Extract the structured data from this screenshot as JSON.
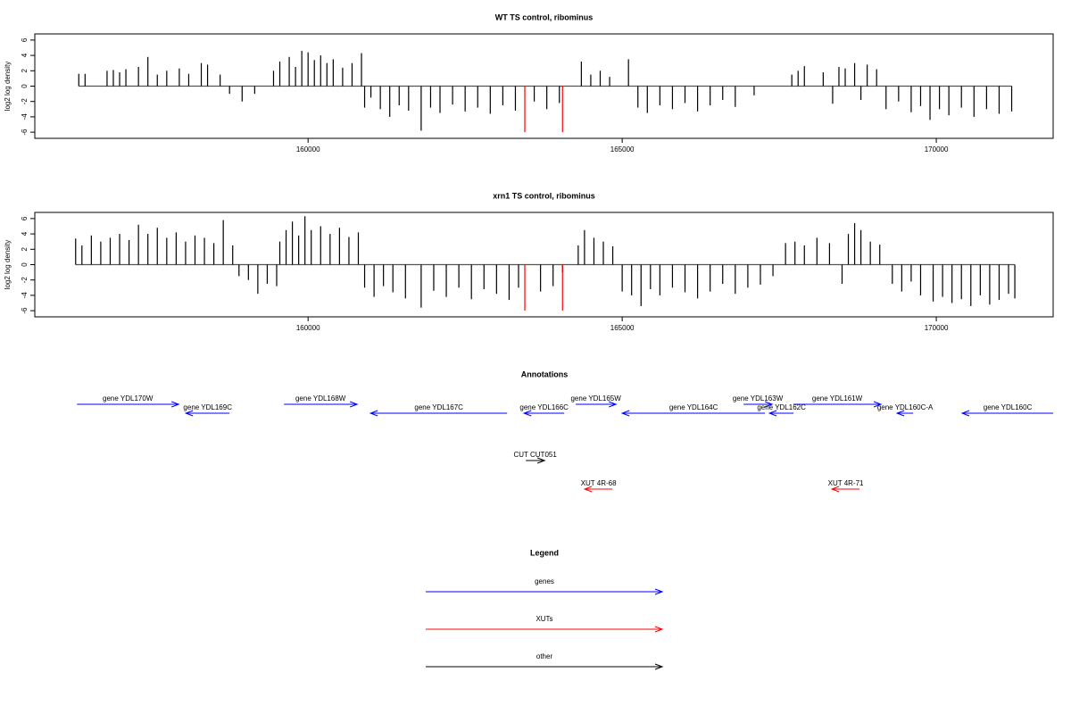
{
  "chart_data": [
    {
      "type": "bar",
      "title": "WT TS control, ribominus",
      "ylabel": "log2 log density",
      "xlim": [
        155650,
        171860
      ],
      "ylim": [
        -6.8,
        6.8
      ],
      "xticks": [
        160000,
        165000,
        170000
      ],
      "yticks": [
        -6,
        -4,
        -2,
        0,
        2,
        4,
        6
      ],
      "series": [
        {
          "color": "#000000",
          "x": [
            156350,
            156450,
            156800,
            156900,
            157000,
            157100,
            157300,
            157450,
            157600,
            157750,
            157950,
            158100,
            158300,
            158400,
            158600,
            158750,
            158950,
            159150,
            159450,
            159550,
            159700,
            159800,
            159900,
            160000,
            160100,
            160200,
            160300,
            160400,
            160550,
            160700,
            160850,
            160900,
            161000,
            161150,
            161300,
            161450,
            161600,
            161800,
            161950,
            162100,
            162300,
            162500,
            162700,
            162900,
            163100,
            163300,
            163600,
            163800,
            164000,
            164350,
            164500,
            164650,
            164800,
            165100,
            165250,
            165400,
            165600,
            165800,
            166000,
            166200,
            166400,
            166600,
            166800,
            167100,
            167700,
            167800,
            167900,
            168200,
            168350,
            168450,
            168550,
            168700,
            168800,
            168900,
            169050,
            169200,
            169400,
            169600,
            169750,
            169900,
            170050,
            170200,
            170400,
            170600,
            170800,
            171000,
            171200
          ],
          "values": [
            1.6,
            1.6,
            2.0,
            2.1,
            1.8,
            2.2,
            2.5,
            3.8,
            1.5,
            2.0,
            2.3,
            1.6,
            3.0,
            2.8,
            1.5,
            -1.0,
            -2.0,
            -1.0,
            2.0,
            3.2,
            3.8,
            2.5,
            4.6,
            4.4,
            3.4,
            4.0,
            3.0,
            3.5,
            2.4,
            3.0,
            4.3,
            -2.8,
            -1.5,
            -3.0,
            -4.0,
            -2.5,
            -3.2,
            -5.8,
            -2.8,
            -3.5,
            -2.4,
            -3.3,
            -2.8,
            -3.6,
            -2.5,
            -3.2,
            -2.0,
            -3.0,
            -2.2,
            3.2,
            1.5,
            2.0,
            1.2,
            3.5,
            -2.8,
            -3.5,
            -2.5,
            -3.0,
            -2.2,
            -3.3,
            -2.5,
            -1.8,
            -2.7,
            -1.2,
            1.5,
            2.0,
            2.6,
            1.8,
            -2.3,
            2.5,
            2.3,
            3.0,
            -1.8,
            2.8,
            2.2,
            -3.0,
            -2.0,
            -3.4,
            -2.6,
            -4.4,
            -3.0,
            -3.8,
            -2.8,
            -4.0,
            -3.0,
            -3.6,
            -3.3
          ]
        },
        {
          "color": "#ff0000",
          "x": [
            163450,
            164050
          ],
          "values": [
            -6,
            -6
          ]
        }
      ]
    },
    {
      "type": "bar",
      "title": "xrn1 TS control, ribominus",
      "ylabel": "log2 log density",
      "xlim": [
        155650,
        171860
      ],
      "ylim": [
        -6.8,
        6.8
      ],
      "xticks": [
        160000,
        165000,
        170000
      ],
      "yticks": [
        -6,
        -4,
        -2,
        0,
        2,
        4,
        6
      ],
      "series": [
        {
          "color": "#000000",
          "x": [
            156300,
            156400,
            156550,
            156700,
            156850,
            157000,
            157150,
            157300,
            157450,
            157600,
            157750,
            157900,
            158050,
            158200,
            158350,
            158500,
            158650,
            158800,
            158900,
            159050,
            159200,
            159350,
            159500,
            159550,
            159650,
            159750,
            159850,
            159950,
            160050,
            160200,
            160350,
            160500,
            160650,
            160800,
            160900,
            161050,
            161200,
            161350,
            161550,
            161800,
            162000,
            162200,
            162400,
            162600,
            162800,
            163000,
            163200,
            163350,
            163700,
            163900,
            164050,
            164300,
            164400,
            164550,
            164700,
            164850,
            165000,
            165150,
            165300,
            165450,
            165600,
            165800,
            166000,
            166200,
            166400,
            166600,
            166800,
            167000,
            167200,
            167400,
            167600,
            167750,
            167900,
            168100,
            168300,
            168500,
            168600,
            168700,
            168800,
            168950,
            169100,
            169300,
            169450,
            169600,
            169750,
            169950,
            170100,
            170250,
            170400,
            170550,
            170700,
            170850,
            171000,
            171150,
            171250
          ],
          "values": [
            3.4,
            2.5,
            3.8,
            3.0,
            3.5,
            4.0,
            3.2,
            5.2,
            4.0,
            4.8,
            3.5,
            4.2,
            3.0,
            3.8,
            3.5,
            2.8,
            5.8,
            2.5,
            -1.5,
            -2.0,
            -3.8,
            -2.5,
            -2.8,
            3.0,
            4.5,
            5.6,
            3.8,
            6.3,
            4.5,
            5.0,
            4.0,
            4.8,
            3.6,
            4.2,
            -3.0,
            -4.2,
            -2.8,
            -3.6,
            -4.4,
            -5.6,
            -3.4,
            -4.2,
            -3.0,
            -4.5,
            -3.2,
            -3.8,
            -4.6,
            -3.0,
            -3.5,
            -2.8,
            -1.0,
            2.5,
            4.5,
            3.5,
            3.0,
            2.4,
            -3.5,
            -4.0,
            -5.4,
            -3.2,
            -4.0,
            -3.0,
            -3.6,
            -4.4,
            -3.5,
            -2.5,
            -3.8,
            -3.0,
            -2.6,
            -1.5,
            2.8,
            3.0,
            2.5,
            3.5,
            2.8,
            -2.5,
            4.0,
            5.4,
            4.5,
            3.0,
            2.6,
            -2.5,
            -3.5,
            -2.2,
            -4.0,
            -4.8,
            -4.2,
            -5.0,
            -4.5,
            -5.4,
            -4.0,
            -5.2,
            -4.6,
            -3.8,
            -4.4
          ]
        },
        {
          "color": "#ff0000",
          "x": [
            163450,
            164050
          ],
          "values": [
            -6,
            -6
          ]
        }
      ]
    }
  ],
  "annotations": {
    "title": "Annotations",
    "tracks": [
      {
        "color": "#0000ff",
        "features": [
          {
            "label": "gene YDL170W",
            "start": 156321,
            "end": 157940
          },
          {
            "label": "gene YDL169C",
            "start": 158750,
            "end": 158054
          },
          {
            "label": "gene YDL168W",
            "start": 159616,
            "end": 160781
          },
          {
            "label": "gene YDL167C",
            "start": 163168,
            "end": 160994
          },
          {
            "label": "gene YDL166C",
            "start": 164077,
            "end": 163438
          },
          {
            "label": "gene YDL165W",
            "start": 164261,
            "end": 164901
          },
          {
            "label": "gene YDL164C",
            "start": 167273,
            "end": 165000
          },
          {
            "label": "gene YDL163W",
            "start": 166932,
            "end": 167386
          },
          {
            "label": "gene YDL162C",
            "start": 167727,
            "end": 167344
          },
          {
            "label": "gene YDL161W",
            "start": 167727,
            "end": 169119
          },
          {
            "label": "gene YDL160C-A",
            "start": 169631,
            "end": 169375
          },
          {
            "label": "gene YDL160C",
            "start": 171861,
            "end": 170412
          }
        ]
      },
      {
        "color": "#000000",
        "features": [
          {
            "label": "CUT CUT051",
            "start": 163466,
            "end": 163764
          }
        ]
      },
      {
        "color": "#ff0000",
        "features": [
          {
            "label": "XUT 4R-68",
            "start": 164844,
            "end": 164403
          },
          {
            "label": "XUT 4R-71",
            "start": 168778,
            "end": 168338
          }
        ]
      }
    ]
  },
  "legend": {
    "title": "Legend",
    "items": [
      {
        "label": "genes",
        "color": "#0000ff"
      },
      {
        "label": "XUTs",
        "color": "#ff0000"
      },
      {
        "label": "other",
        "color": "#000000"
      }
    ]
  }
}
